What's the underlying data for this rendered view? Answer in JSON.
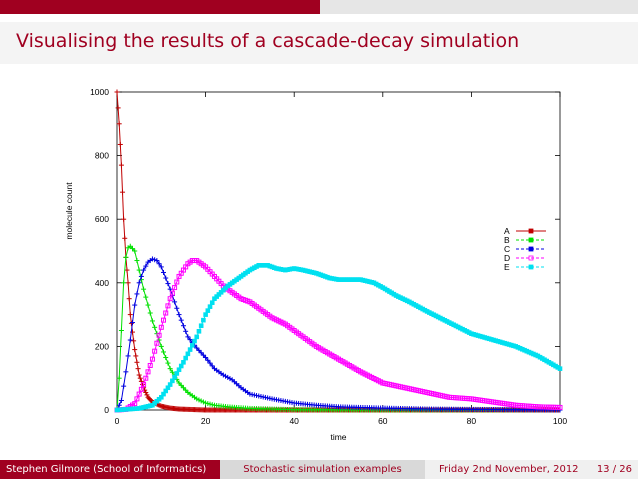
{
  "slide": {
    "title": "Visualising the results of a cascade-decay simulation"
  },
  "footer": {
    "author": "Stephen Gilmore  (School of Informatics)",
    "section": "Stochastic simulation examples",
    "date": "Friday 2nd November, 2012",
    "page": "13 / 26"
  },
  "colors": {
    "brand": "#a00020"
  },
  "chart_data": {
    "type": "line",
    "xlabel": "time",
    "ylabel": "molecule count",
    "xlim": [
      0,
      100
    ],
    "ylim": [
      0,
      1000
    ],
    "xticks": [
      0,
      20,
      40,
      60,
      80,
      100
    ],
    "yticks": [
      0,
      200,
      400,
      600,
      800,
      1000
    ],
    "grid": false,
    "legend": "right",
    "series": [
      {
        "name": "A",
        "color": "#c00000",
        "x": [
          0,
          0.5,
          1,
          1.5,
          2,
          2.5,
          3,
          4,
          5,
          6,
          7,
          8,
          10,
          12,
          14,
          16,
          18,
          20,
          25,
          30,
          40,
          60,
          80,
          100
        ],
        "y": [
          1000,
          900,
          770,
          600,
          480,
          400,
          300,
          190,
          110,
          70,
          40,
          25,
          12,
          6,
          3,
          2,
          1,
          0,
          0,
          0,
          0,
          0,
          0,
          0
        ]
      },
      {
        "name": "B",
        "color": "#00e000",
        "x": [
          0,
          0.5,
          1,
          1.5,
          2,
          2.5,
          3,
          4,
          5,
          6,
          7,
          8,
          10,
          12,
          14,
          16,
          18,
          20,
          22,
          25,
          30,
          35,
          40,
          60,
          80,
          100
        ],
        "y": [
          0,
          100,
          250,
          400,
          480,
          510,
          515,
          500,
          440,
          380,
          330,
          280,
          200,
          130,
          85,
          55,
          35,
          22,
          15,
          10,
          5,
          3,
          1,
          0,
          0,
          0
        ]
      },
      {
        "name": "C",
        "color": "#0000e0",
        "x": [
          0,
          1,
          2,
          3,
          4,
          5,
          6,
          7,
          8,
          9,
          10,
          12,
          14,
          16,
          18,
          20,
          22,
          24,
          26,
          28,
          30,
          35,
          40,
          45,
          50,
          60,
          70,
          80,
          90,
          100
        ],
        "y": [
          0,
          30,
          120,
          220,
          330,
          400,
          440,
          465,
          475,
          470,
          450,
          380,
          300,
          230,
          195,
          165,
          130,
          110,
          95,
          70,
          50,
          35,
          22,
          15,
          10,
          6,
          3,
          2,
          1,
          0
        ]
      },
      {
        "name": "D",
        "color": "#ff00ff",
        "x": [
          0,
          2,
          4,
          6,
          8,
          10,
          12,
          14,
          16,
          17,
          18,
          20,
          22,
          24,
          26,
          28,
          30,
          32,
          35,
          38,
          40,
          45,
          50,
          55,
          60,
          65,
          70,
          75,
          80,
          85,
          90,
          95,
          100
        ],
        "y": [
          0,
          2,
          20,
          80,
          160,
          260,
          350,
          420,
          460,
          470,
          470,
          450,
          420,
          390,
          370,
          350,
          340,
          320,
          290,
          270,
          250,
          200,
          160,
          120,
          85,
          70,
          55,
          40,
          35,
          25,
          15,
          10,
          8
        ]
      },
      {
        "name": "E",
        "color": "#00e0f0",
        "x": [
          0,
          5,
          8,
          10,
          12,
          15,
          18,
          20,
          22,
          25,
          28,
          30,
          32,
          34,
          36,
          38,
          40,
          42,
          45,
          48,
          50,
          55,
          58,
          60,
          63,
          66,
          70,
          75,
          80,
          85,
          90,
          95,
          100
        ],
        "y": [
          0,
          5,
          15,
          40,
          80,
          150,
          230,
          300,
          350,
          390,
          420,
          440,
          455,
          455,
          445,
          440,
          445,
          440,
          430,
          415,
          410,
          410,
          400,
          385,
          360,
          340,
          310,
          275,
          240,
          220,
          200,
          170,
          130
        ]
      }
    ]
  }
}
